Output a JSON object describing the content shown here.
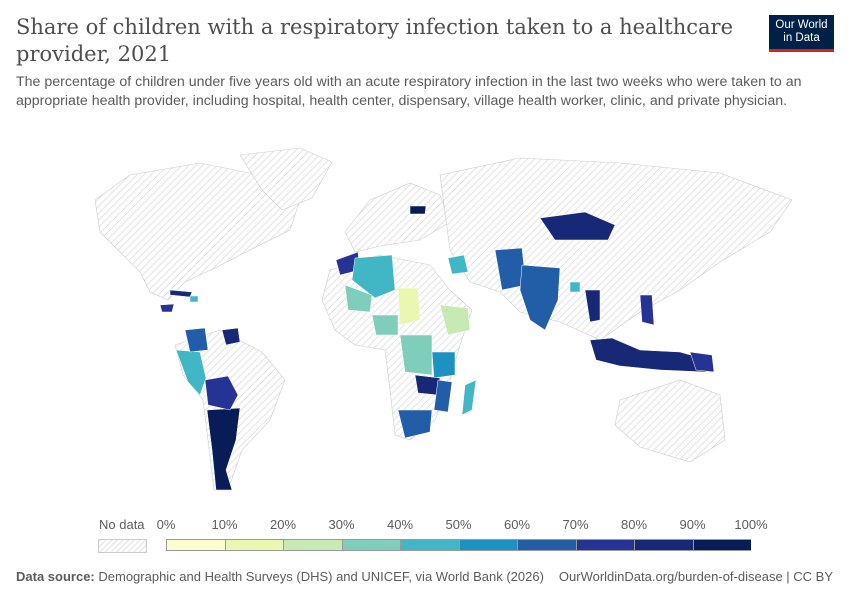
{
  "header": {
    "title": "Share of children with a respiratory infection taken to a healthcare provider, 2021",
    "subtitle": "The percentage of children under five years old with an acute respiratory infection in the last two weeks who were taken to an appropriate health provider, including hospital, health center, dispensary, village health worker, clinic, and private physician.",
    "logo_line1": "Our World",
    "logo_line2": "in Data"
  },
  "legend": {
    "no_data_label": "No data",
    "ticks": [
      "0%",
      "10%",
      "20%",
      "30%",
      "40%",
      "50%",
      "60%",
      "70%",
      "80%",
      "90%",
      "100%"
    ],
    "colors": [
      "#fdfed0",
      "#eaf7b0",
      "#c7e9b4",
      "#7fcdbb",
      "#41b6c4",
      "#1d91c0",
      "#225ea8",
      "#253494",
      "#172976",
      "#081d58"
    ],
    "no_data_color": "#eeeeee"
  },
  "map_data": {
    "projection": "robinson-like world",
    "units": "%",
    "countries": [
      {
        "name": "Argentina",
        "value": 94
      },
      {
        "name": "Bolivia",
        "value": 75
      },
      {
        "name": "Peru",
        "value": 45
      },
      {
        "name": "Colombia",
        "value": 62
      },
      {
        "name": "Guyana",
        "value": 85
      },
      {
        "name": "Haiti",
        "value": 40
      },
      {
        "name": "Cuba",
        "value": 82
      },
      {
        "name": "Honduras",
        "value": 72
      },
      {
        "name": "Morocco",
        "value": 75
      },
      {
        "name": "Algeria",
        "value": 45
      },
      {
        "name": "Mali",
        "value": 35
      },
      {
        "name": "Chad",
        "value": 15
      },
      {
        "name": "Nigeria",
        "value": 35
      },
      {
        "name": "Ethiopia",
        "value": 25
      },
      {
        "name": "DR Congo",
        "value": 35
      },
      {
        "name": "Tanzania",
        "value": 50
      },
      {
        "name": "Zambia",
        "value": 80
      },
      {
        "name": "Mozambique",
        "value": 65
      },
      {
        "name": "South Africa",
        "value": 65
      },
      {
        "name": "Madagascar",
        "value": 45
      },
      {
        "name": "Belarus",
        "value": 92
      },
      {
        "name": "Iraq",
        "value": 45
      },
      {
        "name": "Pakistan",
        "value": 68
      },
      {
        "name": "India",
        "value": 68
      },
      {
        "name": "Bangladesh",
        "value": 45
      },
      {
        "name": "Mongolia",
        "value": 80
      },
      {
        "name": "Thailand",
        "value": 80
      },
      {
        "name": "Indonesia",
        "value": 80
      },
      {
        "name": "Philippines",
        "value": 75
      },
      {
        "name": "Papua New Guinea",
        "value": 70
      }
    ]
  },
  "footer": {
    "source_label": "Data source:",
    "source_text": "Demographic and Health Surveys (DHS) and UNICEF, via World Bank (2026)",
    "url_text": "OurWorldinData.org/burden-of-disease | CC BY"
  }
}
